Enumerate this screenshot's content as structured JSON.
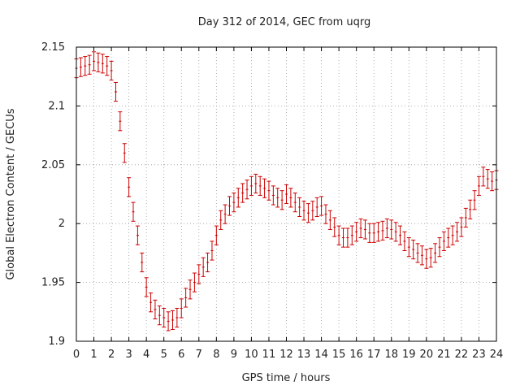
{
  "chart_data": {
    "type": "scatter",
    "title": "Day 312 of 2014, GEC from uqrg",
    "xlabel": "GPS time / hours",
    "ylabel": "Global Electron Content / GECUs",
    "xlim": [
      0,
      24
    ],
    "ylim": [
      1.9,
      2.15
    ],
    "x_ticks": [
      "0",
      "1",
      "2",
      "3",
      "4",
      "5",
      "6",
      "7",
      "8",
      "9",
      "10",
      "11",
      "12",
      "13",
      "14",
      "15",
      "16",
      "17",
      "18",
      "19",
      "20",
      "21",
      "22",
      "23",
      "24"
    ],
    "y_ticks": [
      "1.9",
      "1.95",
      "2",
      "2.05",
      "2.1",
      "2.15"
    ],
    "grid": true,
    "marker": "error-bars",
    "series_color": "#cc0000",
    "series": [
      {
        "x": [
          0.0,
          0.25,
          0.5,
          0.75,
          1.0,
          1.25,
          1.5,
          1.75,
          2.0,
          2.25,
          2.5,
          2.75,
          3.0,
          3.25,
          3.5,
          3.75,
          4.0,
          4.25,
          4.5,
          4.75,
          5.0,
          5.25,
          5.5,
          5.75,
          6.0,
          6.25,
          6.5,
          6.75,
          7.0,
          7.25,
          7.5,
          7.75,
          8.0,
          8.25,
          8.5,
          8.75,
          9.0,
          9.25,
          9.5,
          9.75,
          10.0,
          10.25,
          10.5,
          10.75,
          11.0,
          11.25,
          11.5,
          11.75,
          12.0,
          12.25,
          12.5,
          12.75,
          13.0,
          13.25,
          13.5,
          13.75,
          14.0,
          14.25,
          14.5,
          14.75,
          15.0,
          15.25,
          15.5,
          15.75,
          16.0,
          16.25,
          16.5,
          16.75,
          17.0,
          17.25,
          17.5,
          17.75,
          18.0,
          18.25,
          18.5,
          18.75,
          19.0,
          19.25,
          19.5,
          19.75,
          20.0,
          20.25,
          20.5,
          20.75,
          21.0,
          21.25,
          21.5,
          21.75,
          22.0,
          22.25,
          22.5,
          22.75,
          23.0,
          23.25,
          23.5,
          23.75,
          24.0
        ],
        "y": [
          2.132,
          2.133,
          2.134,
          2.135,
          2.138,
          2.137,
          2.136,
          2.134,
          2.13,
          2.112,
          2.087,
          2.06,
          2.031,
          2.01,
          1.99,
          1.967,
          1.946,
          1.933,
          1.927,
          1.922,
          1.92,
          1.917,
          1.918,
          1.92,
          1.928,
          1.937,
          1.944,
          1.95,
          1.957,
          1.963,
          1.967,
          1.977,
          1.99,
          2.003,
          2.008,
          2.015,
          2.018,
          2.022,
          2.026,
          2.029,
          2.032,
          2.034,
          2.032,
          2.03,
          2.028,
          2.024,
          2.022,
          2.02,
          2.025,
          2.022,
          2.018,
          2.014,
          2.011,
          2.009,
          2.011,
          2.014,
          2.015,
          2.008,
          2.003,
          1.997,
          1.99,
          1.988,
          1.988,
          1.99,
          1.993,
          1.996,
          1.995,
          1.992,
          1.992,
          1.993,
          1.994,
          1.996,
          1.995,
          1.993,
          1.99,
          1.985,
          1.98,
          1.978,
          1.975,
          1.973,
          1.97,
          1.971,
          1.975,
          1.98,
          1.985,
          1.988,
          1.99,
          1.993,
          1.997,
          2.005,
          2.012,
          2.02,
          2.032,
          2.04,
          2.038,
          2.036,
          2.037
        ],
        "err": [
          0.008,
          0.008,
          0.008,
          0.008,
          0.008,
          0.008,
          0.008,
          0.008,
          0.008,
          0.008,
          0.008,
          0.008,
          0.008,
          0.008,
          0.008,
          0.008,
          0.008,
          0.008,
          0.008,
          0.008,
          0.008,
          0.008,
          0.008,
          0.008,
          0.008,
          0.008,
          0.008,
          0.008,
          0.008,
          0.008,
          0.008,
          0.008,
          0.008,
          0.008,
          0.008,
          0.008,
          0.008,
          0.008,
          0.008,
          0.008,
          0.008,
          0.008,
          0.008,
          0.008,
          0.008,
          0.008,
          0.008,
          0.008,
          0.008,
          0.008,
          0.008,
          0.008,
          0.008,
          0.008,
          0.008,
          0.008,
          0.008,
          0.008,
          0.008,
          0.008,
          0.008,
          0.008,
          0.008,
          0.008,
          0.008,
          0.008,
          0.008,
          0.008,
          0.008,
          0.008,
          0.008,
          0.008,
          0.008,
          0.008,
          0.008,
          0.008,
          0.008,
          0.008,
          0.008,
          0.008,
          0.008,
          0.008,
          0.008,
          0.008,
          0.008,
          0.008,
          0.008,
          0.008,
          0.008,
          0.008,
          0.008,
          0.008,
          0.008,
          0.008,
          0.008,
          0.008,
          0.008
        ]
      }
    ]
  }
}
